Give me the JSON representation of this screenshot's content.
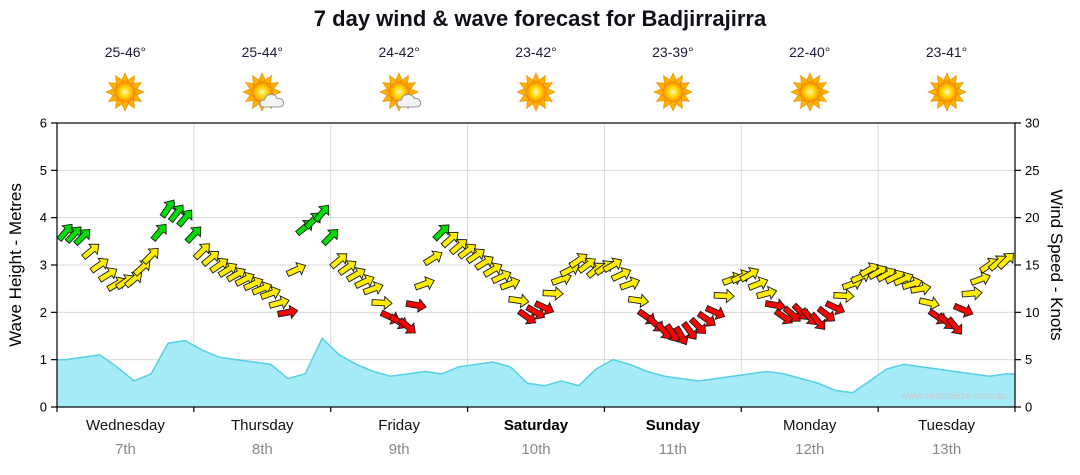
{
  "title": "7 day wind & wave forecast for Badjirrajirra",
  "watermark": "www.seabreeze.com.au",
  "colors": {
    "wave_fill": "#a6ecf8",
    "wave_edge": "#55cfe6",
    "wind_green": "#00dd00",
    "wind_yellow": "#ffee00",
    "wind_red": "#ff0000",
    "arrow_outline": "#1a1a1a",
    "grid": "#d9d9d9",
    "axis": "#000000",
    "day_name": "#111111",
    "date_gray": "#888888",
    "temp_color": "#1b1b3a",
    "watermark_gray": "#c8c8c8"
  },
  "days": [
    {
      "name": "Wednesday",
      "date": "7th",
      "temp": "25-46°",
      "icon": "sunny",
      "weekend": false
    },
    {
      "name": "Thursday",
      "date": "8th",
      "temp": "25-44°",
      "icon": "partly-cloudy",
      "weekend": false
    },
    {
      "name": "Friday",
      "date": "9th",
      "temp": "24-42°",
      "icon": "partly-cloudy",
      "weekend": false
    },
    {
      "name": "Saturday",
      "date": "10th",
      "temp": "23-42°",
      "icon": "sunny",
      "weekend": true
    },
    {
      "name": "Sunday",
      "date": "11th",
      "temp": "23-39°",
      "icon": "sunny",
      "weekend": true
    },
    {
      "name": "Monday",
      "date": "12th",
      "temp": "22-40°",
      "icon": "sunny",
      "weekend": false
    },
    {
      "name": "Tuesday",
      "date": "13th",
      "temp": "23-41°",
      "icon": "sunny",
      "weekend": false
    }
  ],
  "chart_data": {
    "type": "line",
    "title": "7 day wind & wave forecast for Badjirrajirra",
    "x_categories": [
      "Wednesday",
      "Thursday",
      "Friday",
      "Saturday",
      "Sunday",
      "Monday",
      "Tuesday"
    ],
    "samples_per_day": 8,
    "y_left": {
      "label": "Wave Height - Metres",
      "min": 0,
      "max": 6,
      "ticks": [
        0,
        1,
        2,
        3,
        4,
        5,
        6
      ]
    },
    "y_right": {
      "label": "Wind Speed - Knots",
      "min": 0,
      "max": 30,
      "ticks": [
        0,
        5,
        10,
        15,
        20,
        25,
        30
      ]
    },
    "grid": true,
    "series": [
      {
        "name": "Wave Height (m)",
        "axis": "left",
        "render": "area",
        "values": [
          1.0,
          1.05,
          1.1,
          0.85,
          0.55,
          0.7,
          1.35,
          1.4,
          1.2,
          1.05,
          1.0,
          0.95,
          0.9,
          0.6,
          0.7,
          1.45,
          1.1,
          0.9,
          0.75,
          0.65,
          0.7,
          0.75,
          0.7,
          0.85,
          0.9,
          0.95,
          0.85,
          0.5,
          0.45,
          0.55,
          0.45,
          0.8,
          1.0,
          0.9,
          0.75,
          0.65,
          0.6,
          0.55,
          0.6,
          0.65,
          0.7,
          0.75,
          0.7,
          0.6,
          0.5,
          0.35,
          0.3,
          0.55,
          0.8,
          0.9,
          0.85,
          0.8,
          0.75,
          0.7,
          0.65,
          0.7
        ]
      },
      {
        "name": "Wind Speed (knots)",
        "axis": "right",
        "render": "wind-arrows",
        "thresholds": {
          "red_below": 11,
          "green_at_or_above": 18
        },
        "values": [
          18.5,
          18,
          15,
          13,
          13.5,
          16,
          21,
          20,
          16.5,
          15,
          14,
          13,
          12,
          10,
          19,
          20.5,
          15.5,
          14,
          12.5,
          9.5,
          8.5,
          13,
          18.5,
          17,
          16,
          14.5,
          13,
          9.5,
          10.5,
          13.5,
          15.5,
          14.5,
          15,
          13,
          9.5,
          8,
          7.5,
          8.5,
          10,
          13.5,
          14,
          12,
          9.5,
          10,
          9,
          10.5,
          13,
          14.5,
          14,
          13.5,
          12.5,
          9.5,
          8.5,
          12,
          15,
          15.5
        ],
        "directions_deg": [
          40,
          45,
          55,
          60,
          50,
          45,
          35,
          40,
          45,
          55,
          60,
          65,
          70,
          80,
          50,
          40,
          50,
          60,
          70,
          115,
          130,
          70,
          45,
          50,
          55,
          60,
          70,
          125,
          115,
          70,
          55,
          50,
          60,
          70,
          125,
          140,
          150,
          135,
          115,
          70,
          60,
          75,
          125,
          135,
          140,
          115,
          70,
          60,
          60,
          65,
          80,
          125,
          140,
          85,
          55,
          45
        ]
      }
    ]
  }
}
